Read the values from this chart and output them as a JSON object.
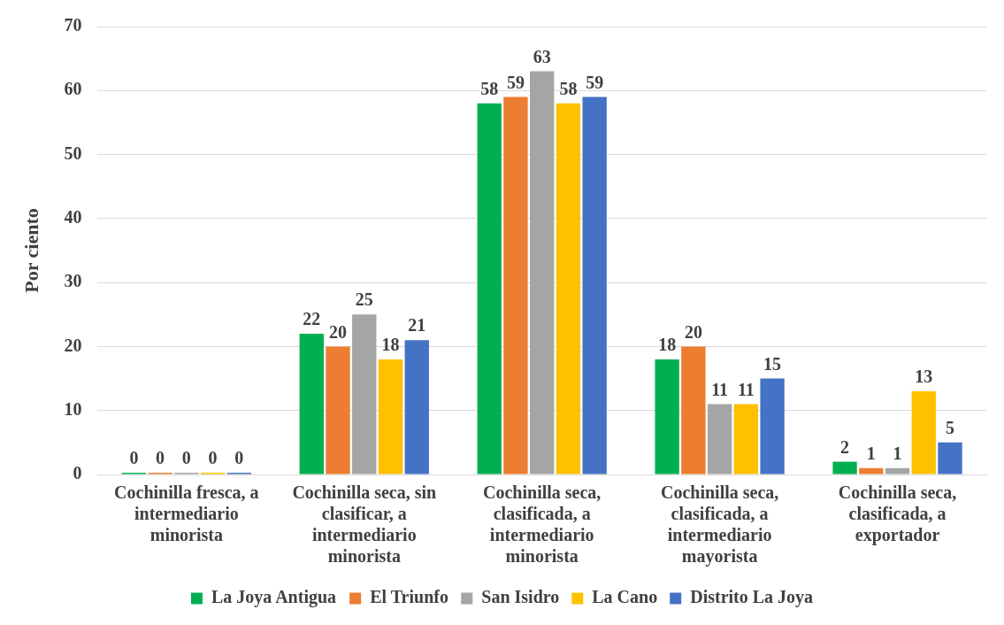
{
  "chart_data": {
    "type": "bar",
    "ylabel": "Por ciento",
    "categories": [
      "Cochinilla fresca, a intermediario minorista",
      "Cochinilla seca, sin clasificar, a intermediario minorista",
      "Cochinilla seca, clasificada, a intermediario minorista",
      "Cochinilla seca, clasificada, a intermediario mayorista",
      "Cochinilla seca, clasificada, a exportador"
    ],
    "series": [
      {
        "name": "La Joya Antigua",
        "color": "#00b050",
        "values": [
          0,
          22,
          58,
          18,
          2
        ]
      },
      {
        "name": "El Triunfo",
        "color": "#ed7d31",
        "values": [
          0,
          20,
          59,
          20,
          1
        ]
      },
      {
        "name": "San Isidro",
        "color": "#a5a5a5",
        "values": [
          0,
          25,
          63,
          11,
          1
        ]
      },
      {
        "name": "La Cano",
        "color": "#ffc000",
        "values": [
          0,
          18,
          58,
          11,
          13
        ]
      },
      {
        "name": "Distrito La Joya",
        "color": "#4472c4",
        "values": [
          0,
          21,
          59,
          15,
          5
        ]
      }
    ],
    "ylim": [
      0,
      70
    ],
    "yticks": [
      0,
      10,
      20,
      30,
      40,
      50,
      60,
      70
    ],
    "grid": "y",
    "legend": "bottom",
    "data_labels": true
  }
}
